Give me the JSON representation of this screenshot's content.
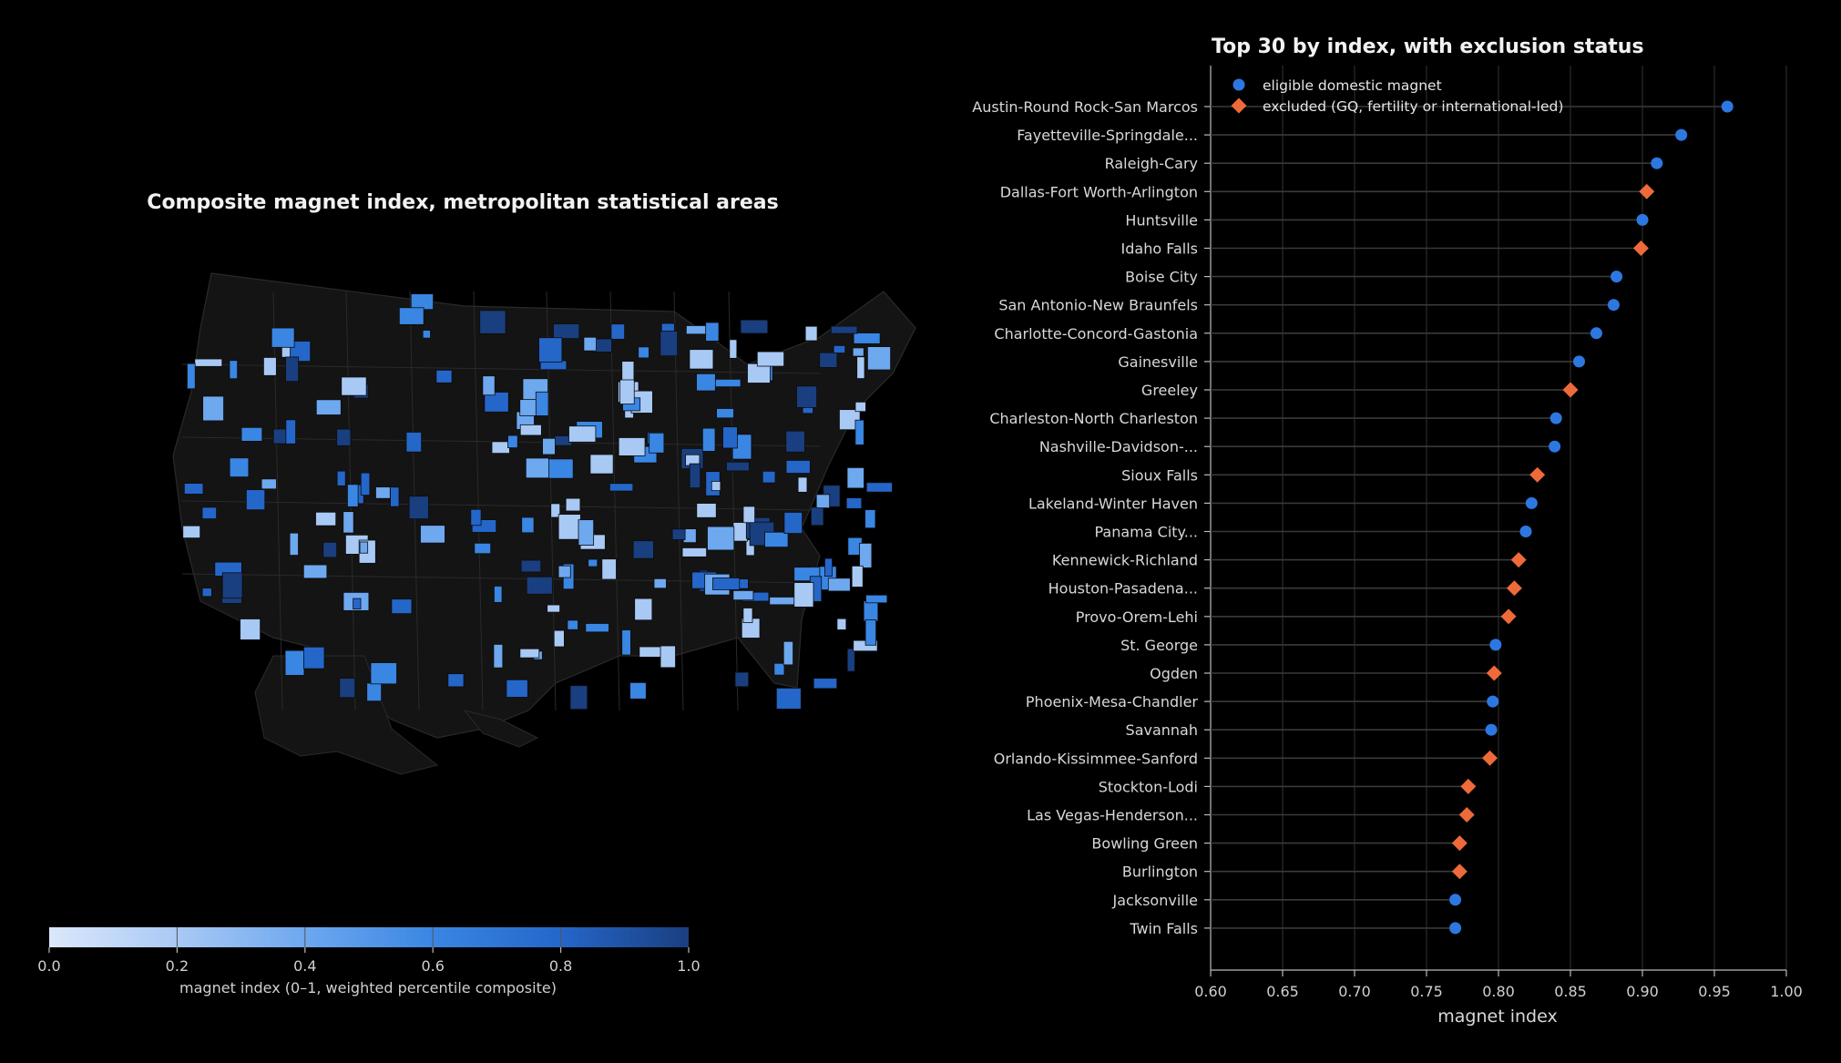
{
  "map": {
    "title": "Composite magnet index, metropolitan statistical areas",
    "colorbar": {
      "label": "magnet index (0–1, weighted percentile composite)",
      "ticks": [
        "0.0",
        "0.2",
        "0.4",
        "0.6",
        "0.8",
        "1.0"
      ],
      "colors": [
        "#dbe8fb",
        "#a9c9f5",
        "#6ea8ef",
        "#3a86e3",
        "#2566c9",
        "#1a3f80"
      ]
    },
    "colors": {
      "land": "#141414",
      "border": "#2a2a2a"
    }
  },
  "chart_data": {
    "type": "dot",
    "title": "Top 30 by index, with exclusion status",
    "xlabel": "magnet index",
    "xlim": [
      0.6,
      1.0
    ],
    "xticks": [
      "0.60",
      "0.65",
      "0.70",
      "0.75",
      "0.80",
      "0.85",
      "0.90",
      "0.95",
      "1.00"
    ],
    "grid": true,
    "legend_position": "top-left",
    "legend": [
      {
        "key": "eligible",
        "label": "eligible domestic magnet",
        "color": "#2d78e0",
        "marker": "circle"
      },
      {
        "key": "excluded",
        "label": "excluded (GQ, fertility or international-led)",
        "color": "#ee6a3a",
        "marker": "diamond"
      }
    ],
    "points": [
      {
        "label": "Austin-Round Rock-San Marcos",
        "value": 0.959,
        "status": "eligible"
      },
      {
        "label": "Fayetteville-Springdale...",
        "value": 0.927,
        "status": "eligible"
      },
      {
        "label": "Raleigh-Cary",
        "value": 0.91,
        "status": "eligible"
      },
      {
        "label": "Dallas-Fort Worth-Arlington",
        "value": 0.903,
        "status": "excluded"
      },
      {
        "label": "Huntsville",
        "value": 0.9,
        "status": "eligible"
      },
      {
        "label": "Idaho Falls",
        "value": 0.899,
        "status": "excluded"
      },
      {
        "label": "Boise City",
        "value": 0.882,
        "status": "eligible"
      },
      {
        "label": "San Antonio-New Braunfels",
        "value": 0.88,
        "status": "eligible"
      },
      {
        "label": "Charlotte-Concord-Gastonia",
        "value": 0.868,
        "status": "eligible"
      },
      {
        "label": "Gainesville",
        "value": 0.856,
        "status": "eligible"
      },
      {
        "label": "Greeley",
        "value": 0.85,
        "status": "excluded"
      },
      {
        "label": "Charleston-North Charleston",
        "value": 0.84,
        "status": "eligible"
      },
      {
        "label": "Nashville-Davidson-...",
        "value": 0.839,
        "status": "eligible"
      },
      {
        "label": "Sioux Falls",
        "value": 0.827,
        "status": "excluded"
      },
      {
        "label": "Lakeland-Winter Haven",
        "value": 0.823,
        "status": "eligible"
      },
      {
        "label": "Panama City...",
        "value": 0.819,
        "status": "eligible"
      },
      {
        "label": "Kennewick-Richland",
        "value": 0.814,
        "status": "excluded"
      },
      {
        "label": "Houston-Pasadena...",
        "value": 0.811,
        "status": "excluded"
      },
      {
        "label": "Provo-Orem-Lehi",
        "value": 0.807,
        "status": "excluded"
      },
      {
        "label": "St. George",
        "value": 0.798,
        "status": "eligible"
      },
      {
        "label": "Ogden",
        "value": 0.797,
        "status": "excluded"
      },
      {
        "label": "Phoenix-Mesa-Chandler",
        "value": 0.796,
        "status": "eligible"
      },
      {
        "label": "Savannah",
        "value": 0.795,
        "status": "eligible"
      },
      {
        "label": "Orlando-Kissimmee-Sanford",
        "value": 0.794,
        "status": "excluded"
      },
      {
        "label": "Stockton-Lodi",
        "value": 0.779,
        "status": "excluded"
      },
      {
        "label": "Las Vegas-Henderson...",
        "value": 0.778,
        "status": "excluded"
      },
      {
        "label": "Bowling Green",
        "value": 0.773,
        "status": "excluded"
      },
      {
        "label": "Burlington",
        "value": 0.773,
        "status": "excluded"
      },
      {
        "label": "Jacksonville",
        "value": 0.77,
        "status": "eligible"
      },
      {
        "label": "Twin Falls",
        "value": 0.77,
        "status": "eligible"
      }
    ]
  }
}
